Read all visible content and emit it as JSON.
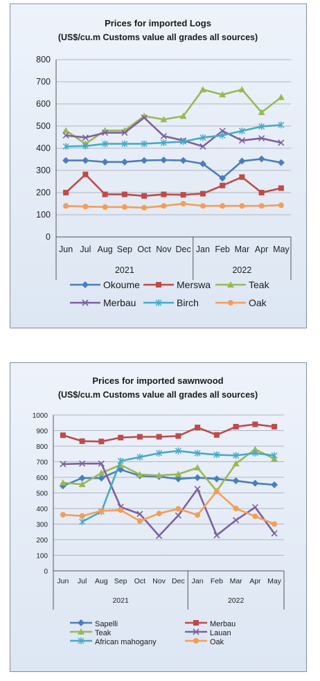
{
  "charts": [
    {
      "type": "line",
      "title_line1": "Prices for imported Logs",
      "title_line2": "(US$/cu.m Customs value all grades all sources)",
      "categories": [
        "Jun",
        "Jul",
        "Aug",
        "Sep",
        "Oct",
        "Nov",
        "Dec",
        "Jan",
        "Feb",
        "Mar",
        "Apr",
        "May"
      ],
      "year_groups": [
        {
          "label": "2021",
          "span": 7
        },
        {
          "label": "2022",
          "span": 5
        }
      ],
      "ylim": [
        0,
        800
      ],
      "yticks": [
        "0",
        "100",
        "200",
        "300",
        "400",
        "500",
        "600",
        "700",
        "800"
      ],
      "grid": true,
      "legend_position": "bottom",
      "series": [
        {
          "name": "Okoume",
          "color": "#4a7ebb",
          "marker": "diamond",
          "values": [
            345,
            345,
            338,
            338,
            345,
            347,
            345,
            330,
            265,
            342,
            352,
            335
          ]
        },
        {
          "name": "Merswa",
          "color": "#be4b48",
          "marker": "square",
          "values": [
            200,
            282,
            192,
            192,
            185,
            192,
            190,
            195,
            232,
            270,
            200,
            220
          ]
        },
        {
          "name": "Teak",
          "color": "#98b954",
          "marker": "triangle",
          "values": [
            480,
            420,
            480,
            480,
            545,
            530,
            545,
            665,
            642,
            665,
            562,
            630
          ]
        },
        {
          "name": "Merbau",
          "color": "#7d60a0",
          "marker": "x",
          "values": [
            458,
            448,
            470,
            470,
            538,
            455,
            435,
            408,
            478,
            435,
            445,
            425
          ]
        },
        {
          "name": "Birch",
          "color": "#46aac5",
          "marker": "star",
          "values": [
            408,
            410,
            420,
            420,
            420,
            425,
            430,
            448,
            458,
            478,
            498,
            505
          ]
        },
        {
          "name": "Oak",
          "color": "#f59d56",
          "marker": "circle",
          "values": [
            140,
            137,
            135,
            135,
            132,
            140,
            150,
            140,
            140,
            140,
            140,
            143
          ]
        }
      ]
    },
    {
      "type": "line",
      "title_line1": "Prices for imported sawnwood",
      "title_line2": "(US$/cu.m Customs value all grades all sources)",
      "categories": [
        "Jun",
        "Jul",
        "Aug",
        "Sep",
        "Oct",
        "Nov",
        "Dec",
        "Jan",
        "Feb",
        "Mar",
        "Apr",
        "May"
      ],
      "year_groups": [
        {
          "label": "2021",
          "span": 7
        },
        {
          "label": "2022",
          "span": 5
        }
      ],
      "ylim": [
        0,
        1000
      ],
      "yticks": [
        "0",
        "100",
        "200",
        "300",
        "400",
        "500",
        "600",
        "700",
        "800",
        "900",
        "1000"
      ],
      "grid": true,
      "legend_position": "bottom",
      "series": [
        {
          "name": "Sapelli",
          "color": "#4a7ebb",
          "marker": "diamond",
          "values": [
            545,
            595,
            595,
            650,
            610,
            605,
            590,
            598,
            590,
            578,
            562,
            552
          ]
        },
        {
          "name": "Merbau",
          "color": "#be4b48",
          "marker": "square",
          "values": [
            870,
            832,
            830,
            855,
            860,
            860,
            865,
            920,
            872,
            925,
            940,
            925
          ]
        },
        {
          "name": "Teak",
          "color": "#98b954",
          "marker": "triangle",
          "values": [
            565,
            555,
            628,
            680,
            618,
            612,
            620,
            662,
            512,
            688,
            780,
            718
          ]
        },
        {
          "name": "Lauan",
          "color": "#7d60a0",
          "marker": "x",
          "values": [
            685,
            688,
            688,
            410,
            365,
            225,
            355,
            525,
            228,
            325,
            408,
            240
          ]
        },
        {
          "name": "African mahogany",
          "color": "#46aac5",
          "marker": "star",
          "values": [
            null,
            315,
            380,
            705,
            730,
            755,
            770,
            755,
            745,
            740,
            755,
            740
          ]
        },
        {
          "name": "Oak",
          "color": "#f59d56",
          "marker": "circle",
          "values": [
            360,
            352,
            385,
            390,
            320,
            368,
            398,
            358,
            510,
            400,
            350,
            300
          ]
        }
      ]
    }
  ]
}
